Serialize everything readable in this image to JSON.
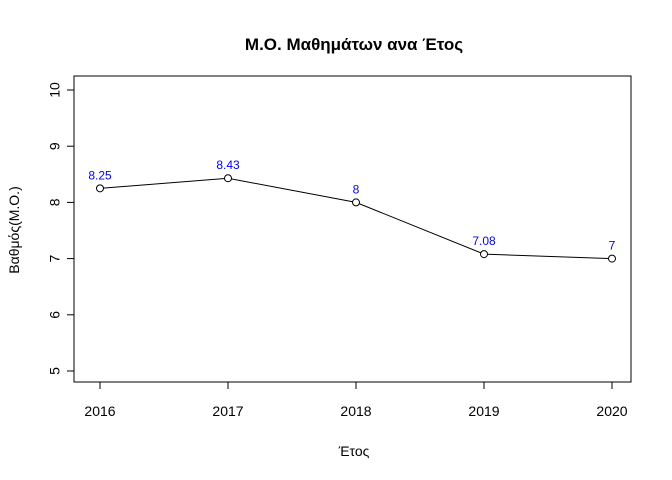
{
  "chart_data": {
    "type": "line",
    "title": "Μ.Ο. Μαθημάτων ανα Έτος",
    "xlabel": "Έτος",
    "ylabel": "Βαθμός(Μ.Ο.)",
    "x": [
      "2016",
      "2017",
      "2018",
      "2019",
      "2020"
    ],
    "values": [
      8.25,
      8.43,
      8,
      7.08,
      7
    ],
    "data_labels": [
      "8.25",
      "8.43",
      "8",
      "7.08",
      "7"
    ],
    "yticks": [
      5,
      6,
      7,
      8,
      9,
      10
    ],
    "ylim": [
      5,
      10
    ],
    "grid": false,
    "line_color": "#000000",
    "marker": "open-circle",
    "label_color": "#0000ff"
  }
}
